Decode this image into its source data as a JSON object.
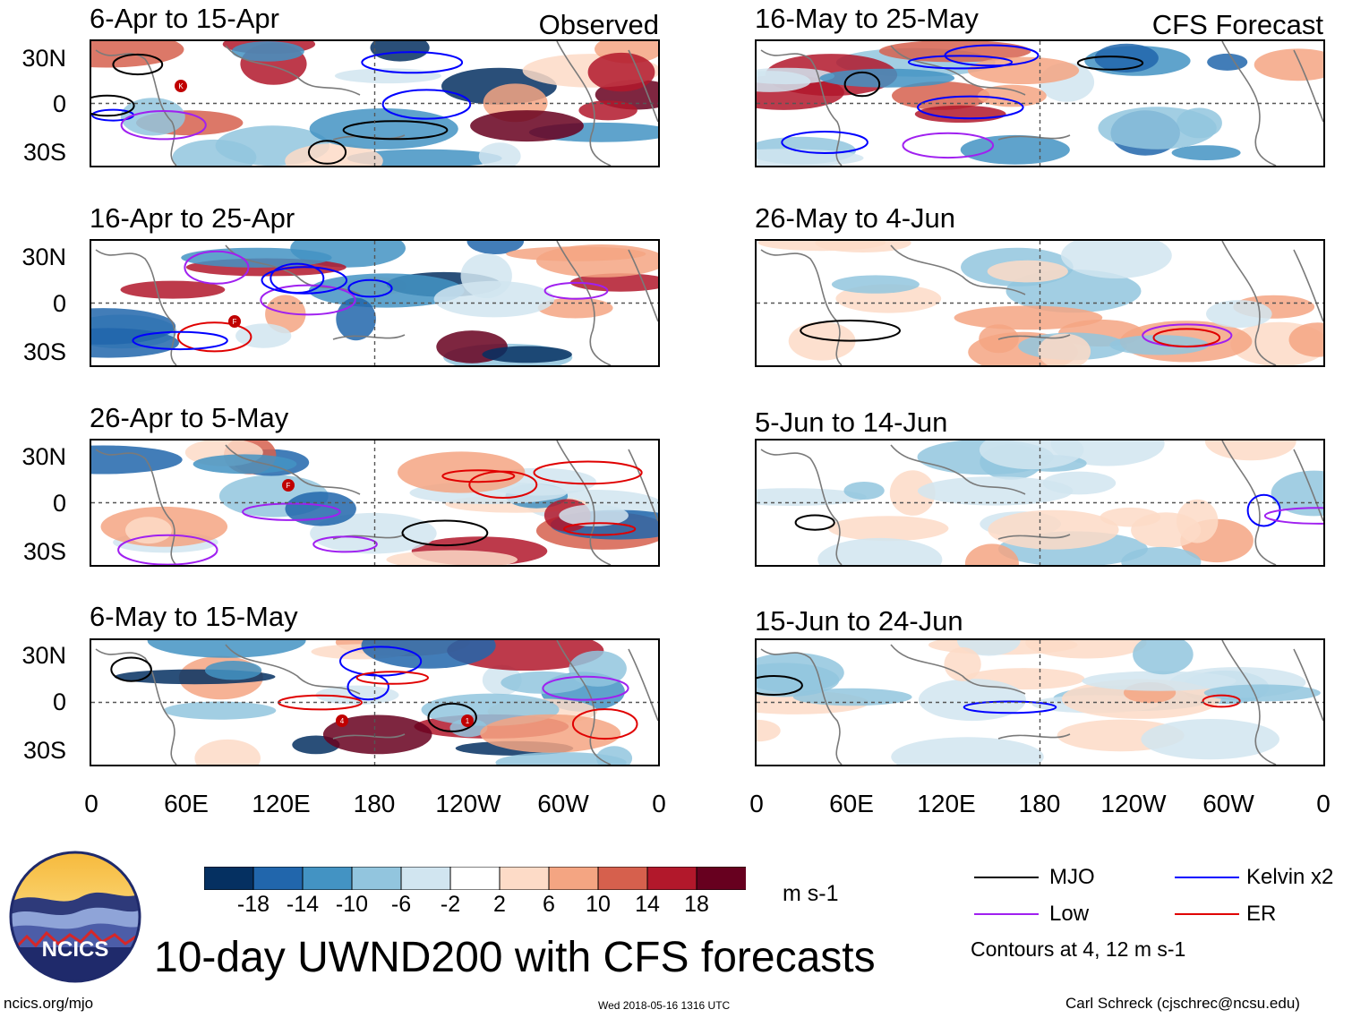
{
  "chart_data": {
    "type": "heatmap",
    "title": "10-day UWND200 with CFS forecasts",
    "variable": "UWND200",
    "units": "m s-1",
    "colorbar": {
      "ticks": [
        "-18",
        "-14",
        "-10",
        "-6",
        "-2",
        "2",
        "6",
        "10",
        "14",
        "18"
      ],
      "colors": [
        "#053061",
        "#2166ac",
        "#4393c3",
        "#92c5de",
        "#d1e5f0",
        "#ffffff",
        "#fddbc7",
        "#f4a582",
        "#d6604d",
        "#b2182b",
        "#67001f"
      ]
    },
    "lat_ticks": [
      "30N",
      "0",
      "30S"
    ],
    "lon_ticks": [
      "0",
      "60E",
      "120E",
      "180",
      "120W",
      "60W",
      "0"
    ],
    "left_column_tag": "Observed",
    "right_column_tag": "CFS Forecast",
    "panels_observed": [
      {
        "title": "6-Apr to 15-Apr",
        "storms": [
          "K"
        ]
      },
      {
        "title": "16-Apr to 25-Apr",
        "storms": [
          "F"
        ]
      },
      {
        "title": "26-Apr to 5-May",
        "storms": [
          "F"
        ]
      },
      {
        "title": "6-May to 15-May",
        "storms": [
          "4",
          "1"
        ]
      }
    ],
    "panels_forecast": [
      {
        "title": "16-May to 25-May"
      },
      {
        "title": "26-May to 4-Jun"
      },
      {
        "title": "5-Jun to 14-Jun"
      },
      {
        "title": "15-Jun to 24-Jun"
      }
    ],
    "contour_legend": [
      {
        "label": "MJO",
        "color": "#000000"
      },
      {
        "label": "Kelvin x2",
        "color": "#0000ff"
      },
      {
        "label": "Low",
        "color": "#a020f0"
      },
      {
        "label": "ER",
        "color": "#e00000"
      }
    ],
    "contour_note": "Contours at 4, 12 m s-1"
  },
  "footer": {
    "logo_text": "NCICS",
    "url": "ncics.org/mjo",
    "timestamp": "Wed 2018-05-16 1316 UTC",
    "credit": "Carl Schreck (cjschrec@ncsu.edu)"
  }
}
